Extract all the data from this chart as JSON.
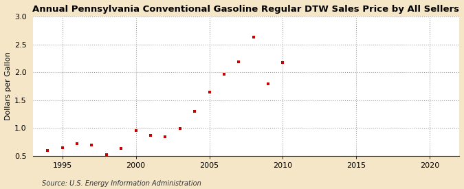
{
  "title": "Annual Pennsylvania Conventional Gasoline Regular DTW Sales Price by All Sellers",
  "ylabel": "Dollars per Gallon",
  "source": "Source: U.S. Energy Information Administration",
  "fig_background_color": "#f5e6c8",
  "plot_background_color": "#ffffff",
  "marker_color": "#cc0000",
  "xlim": [
    1993,
    2022
  ],
  "ylim": [
    0.5,
    3.0
  ],
  "yticks": [
    0.5,
    1.0,
    1.5,
    2.0,
    2.5,
    3.0
  ],
  "xticks": [
    1995,
    2000,
    2005,
    2010,
    2015,
    2020
  ],
  "years": [
    1994,
    1995,
    1996,
    1997,
    1998,
    1999,
    2000,
    2001,
    2002,
    2003,
    2004,
    2005,
    2006,
    2007,
    2008,
    2009,
    2010
  ],
  "values": [
    0.6,
    0.65,
    0.72,
    0.7,
    0.53,
    0.63,
    0.96,
    0.87,
    0.84,
    0.99,
    1.3,
    1.65,
    1.96,
    2.19,
    2.63,
    1.79,
    2.18
  ],
  "title_fontsize": 9.5,
  "label_fontsize": 8,
  "tick_fontsize": 8,
  "source_fontsize": 7
}
